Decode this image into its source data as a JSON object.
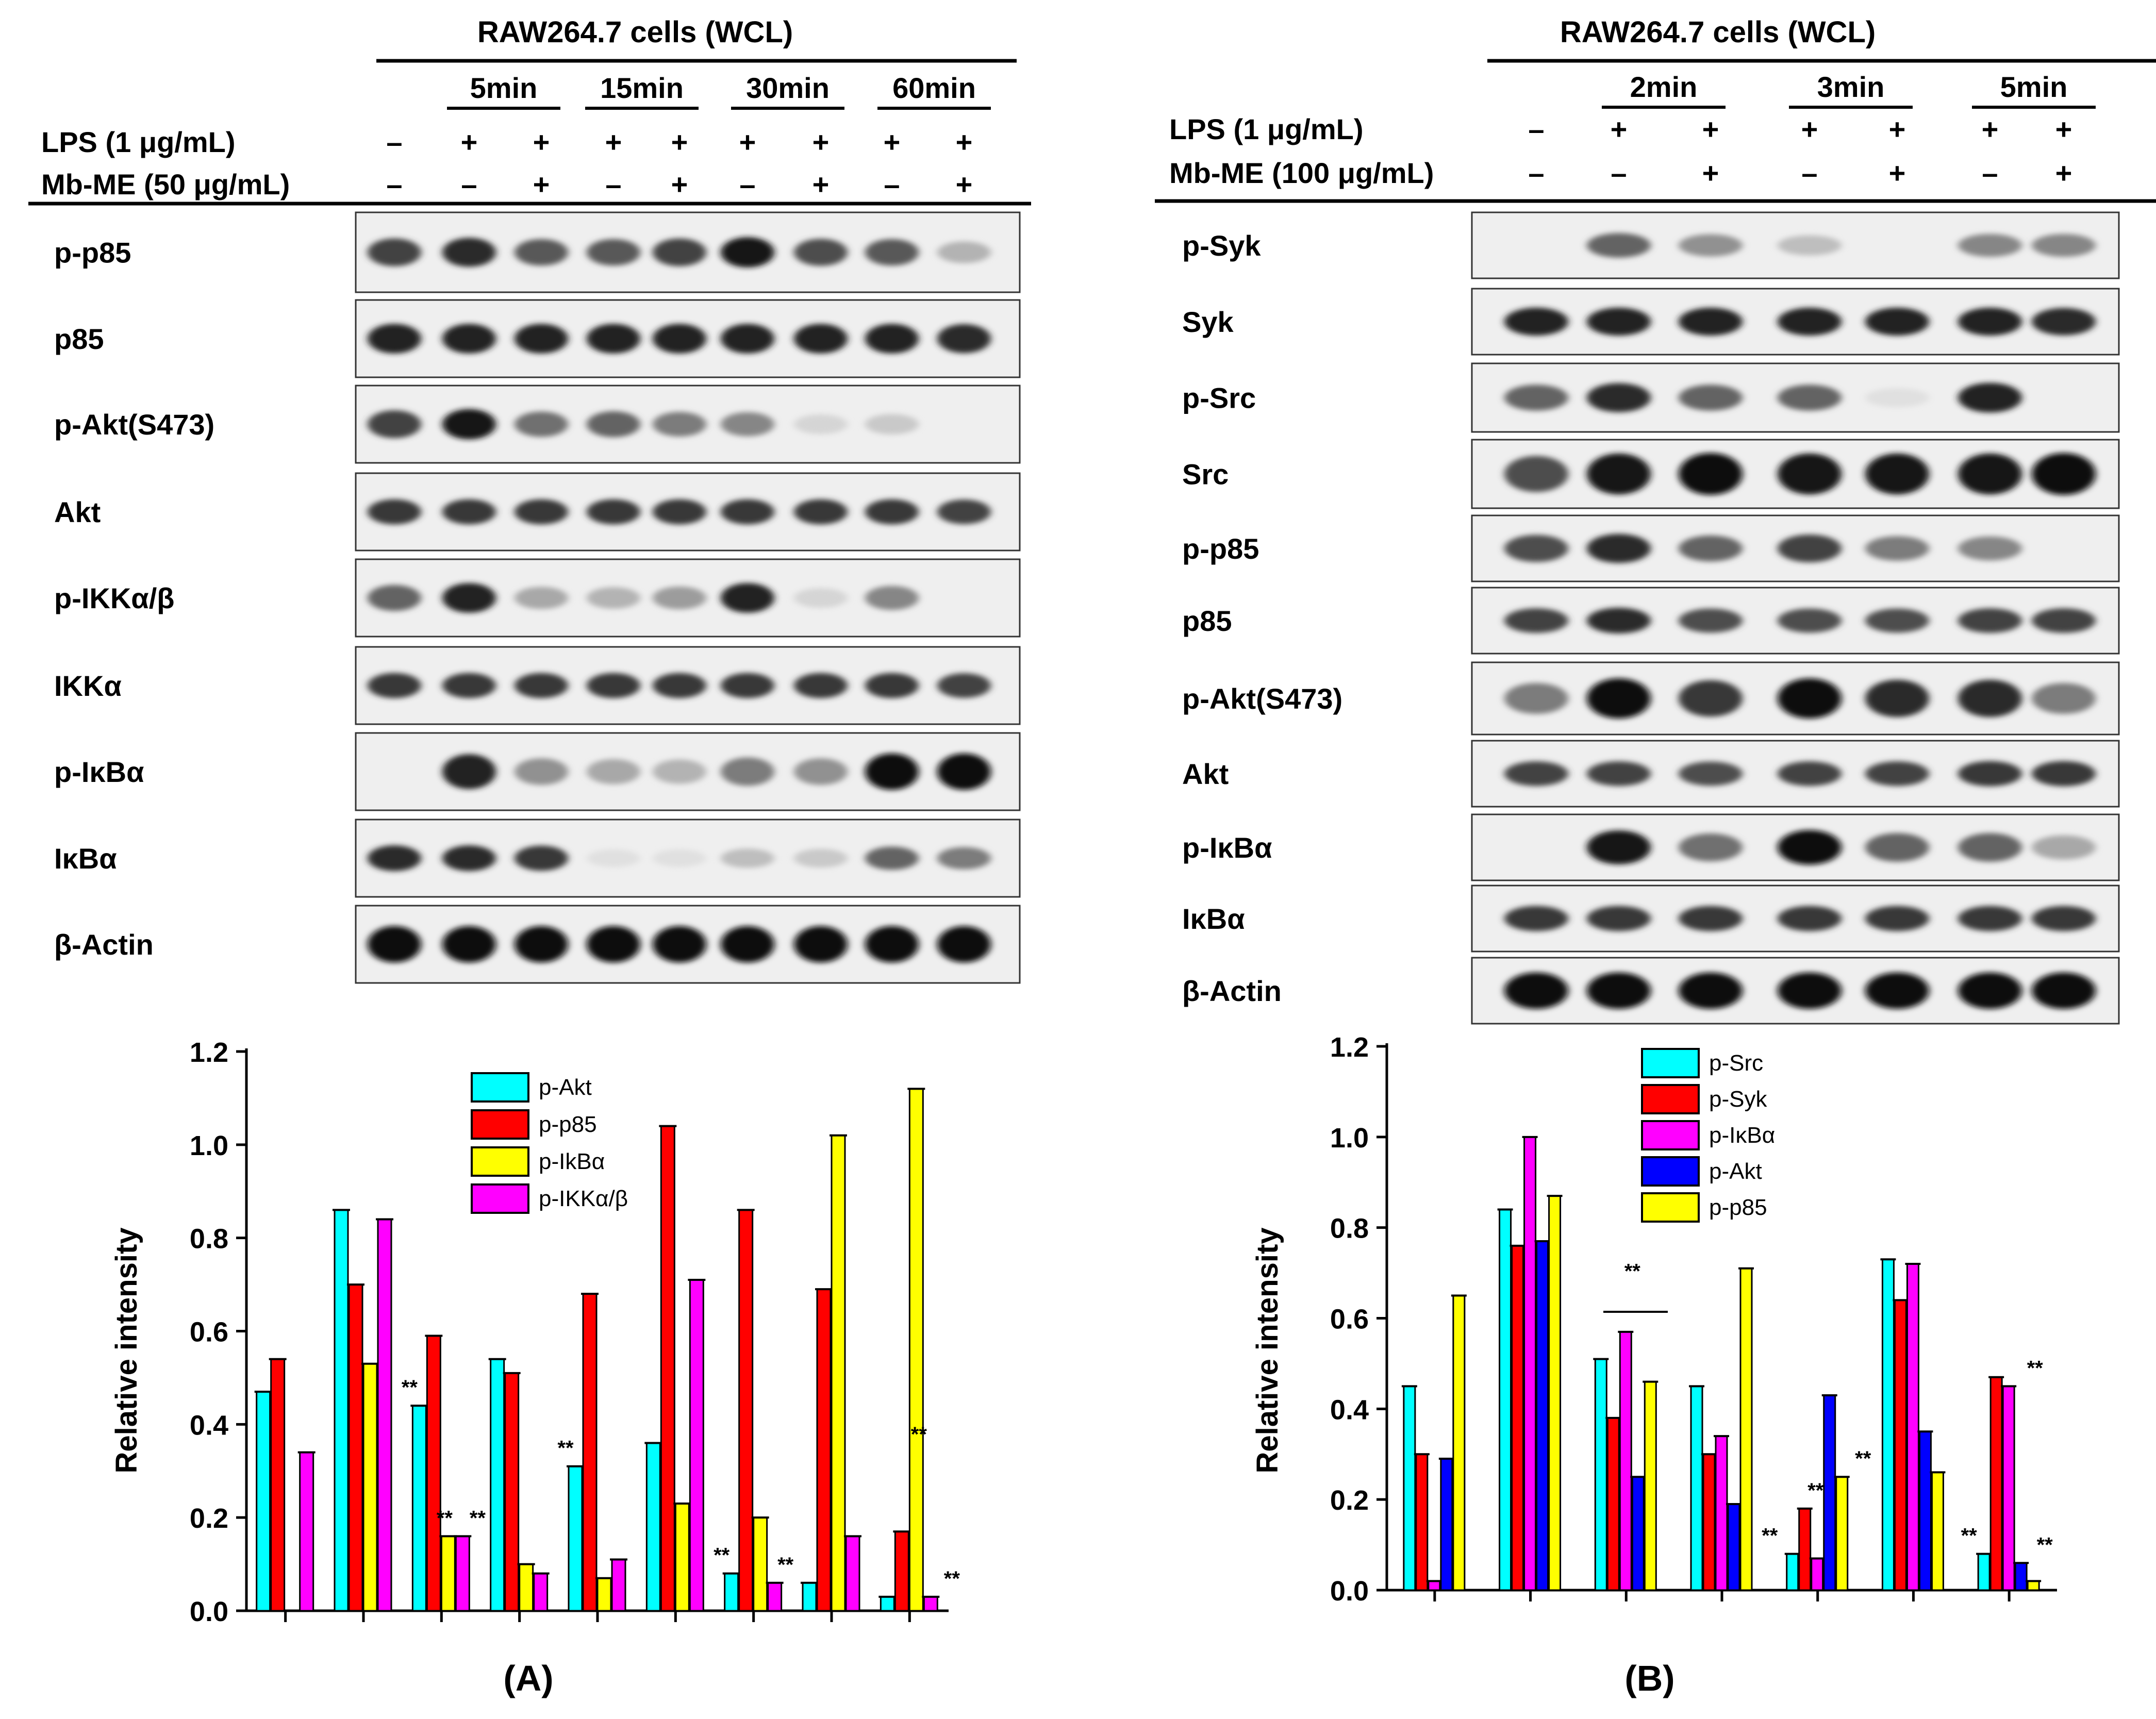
{
  "panel_a": {
    "header": "RAW264.7 cells (WCL)",
    "timepoints": [
      "5min",
      "15min",
      "30min",
      "60min"
    ],
    "treat_rows": [
      {
        "label": "LPS (1 μg/mL)",
        "signs": [
          "–",
          "+",
          "+",
          "+",
          "+",
          "+",
          "+",
          "+",
          "+"
        ]
      },
      {
        "label": "Mb-ME (50 μg/mL)",
        "signs": [
          "–",
          "–",
          "+",
          "–",
          "+",
          "–",
          "+",
          "–",
          "+"
        ]
      }
    ],
    "blots": [
      {
        "label": "p-p85",
        "bands": [
          0.75,
          0.85,
          0.65,
          0.65,
          0.75,
          0.95,
          0.7,
          0.65,
          0.25
        ],
        "w": 1.0
      },
      {
        "label": "p85",
        "bands": [
          0.9,
          0.9,
          0.9,
          0.9,
          0.9,
          0.9,
          0.9,
          0.9,
          0.85
        ],
        "w": 1.0
      },
      {
        "label": "p-Akt(S473)",
        "bands": [
          0.75,
          0.95,
          0.55,
          0.6,
          0.5,
          0.45,
          0.1,
          0.15,
          0.0
        ],
        "w": 1.0
      },
      {
        "label": "Akt",
        "bands": [
          0.8,
          0.8,
          0.8,
          0.8,
          0.8,
          0.8,
          0.8,
          0.8,
          0.75
        ],
        "w": 0.8
      },
      {
        "label": "p-IKKα/β",
        "bands": [
          0.6,
          0.9,
          0.3,
          0.25,
          0.35,
          0.9,
          0.1,
          0.45,
          0.0
        ],
        "w": 1.0
      },
      {
        "label": "IKKα",
        "bands": [
          0.8,
          0.8,
          0.8,
          0.8,
          0.8,
          0.8,
          0.8,
          0.8,
          0.75
        ],
        "w": 0.8
      },
      {
        "label": "p-IκBα",
        "bands": [
          0.0,
          0.9,
          0.4,
          0.3,
          0.25,
          0.5,
          0.4,
          1.0,
          1.0
        ],
        "w": 1.3
      },
      {
        "label": "IκBα",
        "bands": [
          0.85,
          0.85,
          0.8,
          0.05,
          0.05,
          0.2,
          0.15,
          0.6,
          0.5
        ],
        "w": 0.8
      },
      {
        "label": "β-Actin",
        "bands": [
          1.0,
          1.0,
          1.0,
          1.0,
          1.0,
          1.0,
          1.0,
          1.0,
          1.0
        ],
        "w": 1.3
      }
    ],
    "caption": "(A)"
  },
  "panel_b": {
    "header": "RAW264.7 cells (WCL)",
    "timepoints": [
      "2min",
      "3min",
      "5min"
    ],
    "treat_rows": [
      {
        "label": "LPS (1 μg/mL)",
        "signs": [
          "–",
          "+",
          "+",
          "+",
          "+",
          "+",
          "+"
        ]
      },
      {
        "label": "Mb-ME (100 μg/mL)",
        "signs": [
          "–",
          "–",
          "+",
          "–",
          "+",
          "–",
          "+"
        ]
      }
    ],
    "blots": [
      {
        "label": "p-Syk",
        "bands": [
          0.0,
          0.6,
          0.4,
          0.2,
          0.0,
          0.45,
          0.45
        ],
        "w": 0.9
      },
      {
        "label": "Syk",
        "bands": [
          0.9,
          0.9,
          0.9,
          0.9,
          0.9,
          0.9,
          0.85
        ],
        "w": 0.9
      },
      {
        "label": "p-Src",
        "bands": [
          0.6,
          0.85,
          0.6,
          0.6,
          0.05,
          0.9,
          0.0
        ],
        "w": 1.0
      },
      {
        "label": "Src",
        "bands": [
          0.7,
          0.95,
          1.0,
          0.95,
          0.95,
          0.95,
          1.0
        ],
        "w": 1.6
      },
      {
        "label": "p-p85",
        "bands": [
          0.7,
          0.85,
          0.6,
          0.75,
          0.5,
          0.45,
          0.0
        ],
        "w": 1.0
      },
      {
        "label": "p85",
        "bands": [
          0.75,
          0.85,
          0.7,
          0.7,
          0.7,
          0.75,
          0.75
        ],
        "w": 0.8
      },
      {
        "label": "p-Akt(S473)",
        "bands": [
          0.5,
          1.0,
          0.8,
          1.0,
          0.85,
          0.85,
          0.5
        ],
        "w": 1.5
      },
      {
        "label": "Akt",
        "bands": [
          0.75,
          0.75,
          0.7,
          0.75,
          0.75,
          0.8,
          0.8
        ],
        "w": 0.8
      },
      {
        "label": "p-IκBα",
        "bands": [
          0.0,
          0.95,
          0.55,
          1.0,
          0.6,
          0.6,
          0.3
        ],
        "w": 1.2
      },
      {
        "label": "IκBα",
        "bands": [
          0.8,
          0.8,
          0.8,
          0.8,
          0.8,
          0.8,
          0.8
        ],
        "w": 0.8
      },
      {
        "label": "β-Actin",
        "bands": [
          1.0,
          1.0,
          1.0,
          1.0,
          1.0,
          1.0,
          1.0
        ],
        "w": 1.3
      }
    ],
    "caption": "(B)"
  },
  "colors": {
    "cyan": "#00ffff",
    "red": "#ff0000",
    "yellow": "#ffff00",
    "magenta": "#ff00ff",
    "blue": "#0000ff",
    "edge": "#000000"
  },
  "chart_data": [
    {
      "type": "bar",
      "ylabel": "Relative intensity",
      "ylim": [
        0,
        1.2
      ],
      "yticks": [
        "0.0",
        "0.2",
        "0.4",
        "0.6",
        "0.8",
        "1.0",
        "1.2"
      ],
      "legend_position": "top-center",
      "series": [
        {
          "name": "p-Akt",
          "color": "#00ffff",
          "values": [
            0.47,
            0.86,
            0.44,
            0.54,
            0.31,
            0.36,
            0.08,
            0.06,
            0.03
          ]
        },
        {
          "name": "p-p85",
          "color": "#ff0000",
          "values": [
            0.54,
            0.7,
            0.59,
            0.51,
            0.68,
            1.04,
            0.86,
            0.69,
            0.17
          ]
        },
        {
          "name": "p-IkBα",
          "color": "#ffff00",
          "values": [
            0.0,
            0.53,
            0.16,
            0.1,
            0.07,
            0.23,
            0.2,
            1.02,
            1.12
          ]
        },
        {
          "name": "p-IKKα/β",
          "color": "#ff00ff",
          "values": [
            0.34,
            0.84,
            0.16,
            0.08,
            0.11,
            0.71,
            0.06,
            0.16,
            0.03
          ]
        }
      ],
      "annotations": [
        "**",
        "**",
        "**",
        "**",
        "**",
        "**",
        "**",
        "**"
      ]
    },
    {
      "type": "bar",
      "ylabel": "Relative intensity",
      "ylim": [
        0,
        1.2
      ],
      "yticks": [
        "0.0",
        "0.2",
        "0.4",
        "0.6",
        "0.8",
        "1.0",
        "1.2"
      ],
      "legend_position": "top-left",
      "series": [
        {
          "name": "p-Src",
          "color": "#00ffff",
          "values": [
            0.45,
            0.84,
            0.51,
            0.45,
            0.08,
            0.73,
            0.08
          ]
        },
        {
          "name": "p-Syk",
          "color": "#ff0000",
          "values": [
            0.3,
            0.76,
            0.38,
            0.3,
            0.18,
            0.64,
            0.47
          ]
        },
        {
          "name": "p-IκBα",
          "color": "#ff00ff",
          "values": [
            0.02,
            1.0,
            0.57,
            0.34,
            0.07,
            0.72,
            0.45
          ]
        },
        {
          "name": "p-Akt",
          "color": "#0000ff",
          "values": [
            0.29,
            0.77,
            0.25,
            0.19,
            0.43,
            0.35,
            0.06
          ]
        },
        {
          "name": "p-p85",
          "color": "#ffff00",
          "values": [
            0.65,
            0.87,
            0.46,
            0.71,
            0.25,
            0.26,
            0.02
          ]
        }
      ],
      "annotations": [
        "**",
        "**",
        "**",
        "**",
        "**",
        "**",
        "**"
      ]
    }
  ]
}
